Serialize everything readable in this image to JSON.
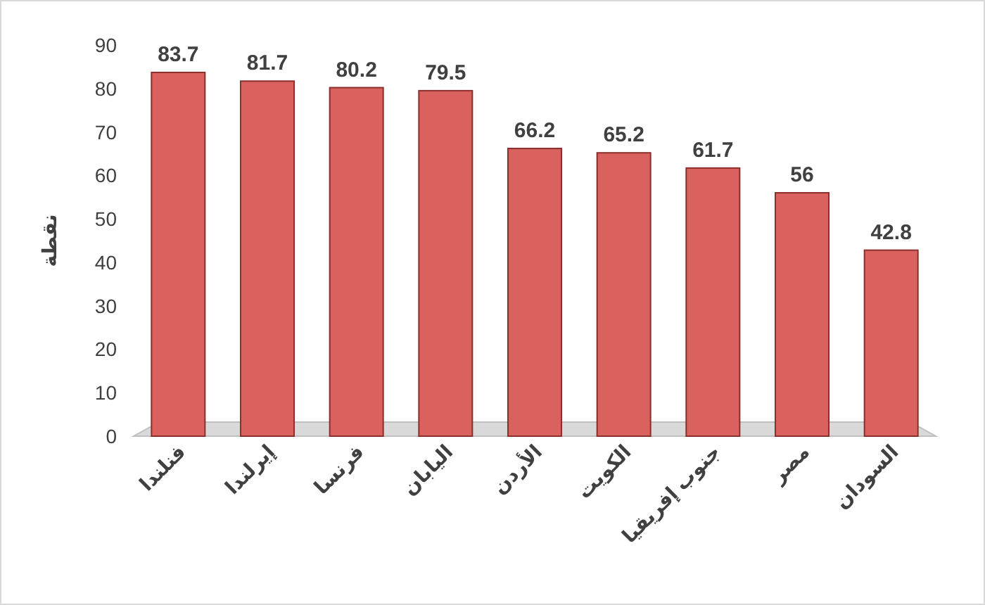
{
  "chart_data": {
    "type": "bar",
    "ylabel": "نقطة",
    "categories": [
      "فنلندا",
      "إيرلندا",
      "فرنسا",
      "اليابان",
      "الأردن",
      "الكويت",
      "جنوب إفريقيا",
      "مصر",
      "السودان"
    ],
    "values": [
      83.7,
      81.7,
      80.2,
      79.5,
      66.2,
      65.2,
      61.7,
      56,
      42.8
    ],
    "color": "#d9625f",
    "ylim": [
      0,
      90
    ],
    "yticks": [
      0,
      10,
      20,
      30,
      40,
      50,
      60,
      70,
      80,
      90
    ],
    "data_labels": true,
    "grid": false
  }
}
